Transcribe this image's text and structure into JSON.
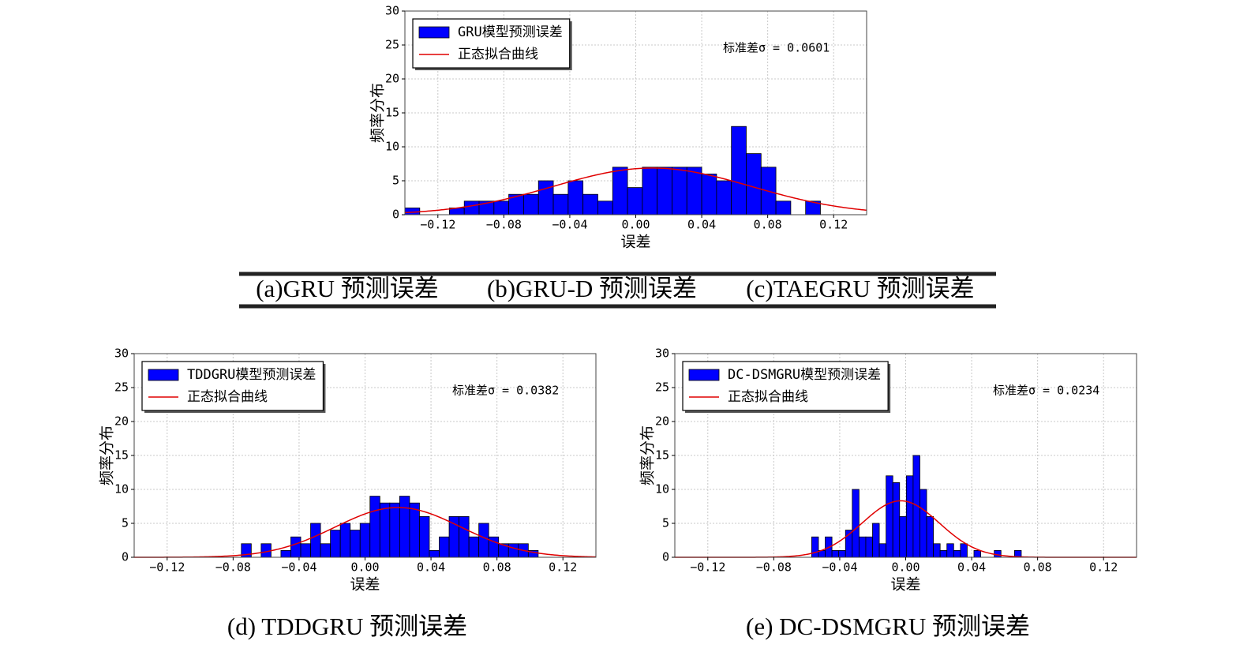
{
  "chart_data": [
    {
      "type": "histogram",
      "xlabel": "误差",
      "ylabel": "频率分布",
      "name": "GRU模型预测误差",
      "color": "#0000ff",
      "bins": [
        -0.14,
        -0.131,
        -0.122,
        -0.113,
        -0.104,
        -0.095,
        -0.086,
        -0.077,
        -0.068,
        -0.059,
        -0.05,
        -0.041,
        -0.032,
        -0.023,
        -0.014,
        -0.005,
        0.004,
        0.013,
        0.022,
        0.031,
        0.04,
        0.049,
        0.058,
        0.067,
        0.076,
        0.085,
        0.094,
        0.103,
        0.112
      ],
      "values": [
        1,
        0,
        0,
        1,
        2,
        2,
        2,
        3,
        3,
        5,
        3,
        5,
        3,
        2,
        7,
        4,
        7,
        7,
        7,
        7,
        6,
        5,
        13,
        9,
        7,
        2,
        0,
        2
      ],
      "fit": {
        "name": "正态拟合曲线",
        "color": "#e00000",
        "mean": 0.01
      },
      "annotation": {
        "value": 0.0601,
        "label": "标准差σ = 0.0601"
      },
      "xlim": [
        -0.14,
        0.14
      ],
      "ylim": [
        0,
        30
      ],
      "xticks": [
        {
          "value": -0.12,
          "label": "−0.12"
        },
        {
          "value": -0.08,
          "label": "−0.08"
        },
        {
          "value": -0.04,
          "label": "−0.04"
        },
        {
          "value": 0,
          "label": "0.00"
        },
        0.04,
        0.08,
        0.12
      ],
      "yticks": [
        0,
        5,
        10,
        15,
        20,
        25,
        30
      ],
      "grid": true,
      "legend": "upper left"
    },
    {
      "type": "histogram",
      "xlabel": "误差",
      "ylabel": "频率分布",
      "name": "TDDGRU模型预测误差",
      "color": "#0000ff",
      "bins": [
        -0.075,
        -0.069,
        -0.063,
        -0.057,
        -0.051,
        -0.045,
        -0.039,
        -0.033,
        -0.027,
        -0.021,
        -0.015,
        -0.009,
        -0.003,
        0.003,
        0.009,
        0.015,
        0.021,
        0.027,
        0.033,
        0.039,
        0.045,
        0.051,
        0.057,
        0.063,
        0.069,
        0.075,
        0.081,
        0.087,
        0.093,
        0.099,
        0.105
      ],
      "values": [
        2,
        0,
        2,
        0,
        1,
        3,
        2,
        5,
        2,
        4,
        5,
        4,
        5,
        9,
        8,
        8,
        9,
        8,
        6,
        1,
        3,
        6,
        6,
        3,
        5,
        3,
        2,
        2,
        2,
        1
      ],
      "fit": {
        "name": "正态拟合曲线",
        "color": "#e00000",
        "mean": 0.02
      },
      "annotation": {
        "value": 0.0382,
        "label": "标准差σ = 0.0382"
      },
      "xlim": [
        -0.14,
        0.14
      ],
      "ylim": [
        0,
        30
      ],
      "xticks": [
        {
          "value": -0.12,
          "label": "−0.12"
        },
        {
          "value": -0.08,
          "label": "−0.08"
        },
        {
          "value": -0.04,
          "label": "−0.04"
        },
        {
          "value": 0,
          "label": "0.00"
        },
        0.04,
        0.08,
        0.12
      ],
      "yticks": [
        0,
        5,
        10,
        15,
        20,
        25,
        30
      ],
      "grid": true,
      "legend": "upper left"
    },
    {
      "type": "histogram",
      "xlabel": "误差",
      "ylabel": "频率分布",
      "name": "DC-DSMGRU模型预测误差",
      "color": "#0000ff",
      "bins": [
        -0.057,
        -0.0529,
        -0.0488,
        -0.0447,
        -0.0406,
        -0.0365,
        -0.0324,
        -0.0283,
        -0.0242,
        -0.0201,
        -0.016,
        -0.0119,
        -0.0078,
        -0.0037,
        0.0004,
        0.0045,
        0.0086,
        0.0127,
        0.0168,
        0.0209,
        0.025,
        0.0291,
        0.0332,
        0.0373,
        0.0414,
        0.0455,
        0.0496,
        0.0537,
        0.0578,
        0.0619,
        0.066,
        0.0701
      ],
      "values": [
        3,
        1,
        3,
        1,
        1,
        4,
        10,
        3,
        3,
        5,
        2,
        12,
        11,
        6,
        12,
        15,
        10,
        6,
        2,
        1,
        2,
        1,
        2,
        0,
        1,
        0,
        0,
        1,
        0,
        0,
        1
      ],
      "fit": {
        "name": "正态拟合曲线",
        "color": "#e00000",
        "mean": -0.003
      },
      "annotation": {
        "value": 0.0234,
        "label": "标准差σ = 0.0234"
      },
      "xlim": [
        -0.14,
        0.14
      ],
      "ylim": [
        0,
        30
      ],
      "xticks": [
        {
          "value": -0.12,
          "label": "−0.12"
        },
        {
          "value": -0.08,
          "label": "−0.08"
        },
        {
          "value": -0.04,
          "label": "−0.04"
        },
        {
          "value": 0,
          "label": "0.00"
        },
        0.04,
        0.08,
        0.12
      ],
      "yticks": [
        0,
        5,
        10,
        15,
        20,
        25,
        30
      ],
      "grid": true,
      "legend": "upper left"
    }
  ],
  "captions": [
    "(a)GRU 预测误差",
    "(b)GRU-D 预测误差",
    "(c)TAEGRU 预测误差",
    "(d) TDDGRU 预测误差",
    "(e) DC-DSMGRU 预测误差"
  ]
}
